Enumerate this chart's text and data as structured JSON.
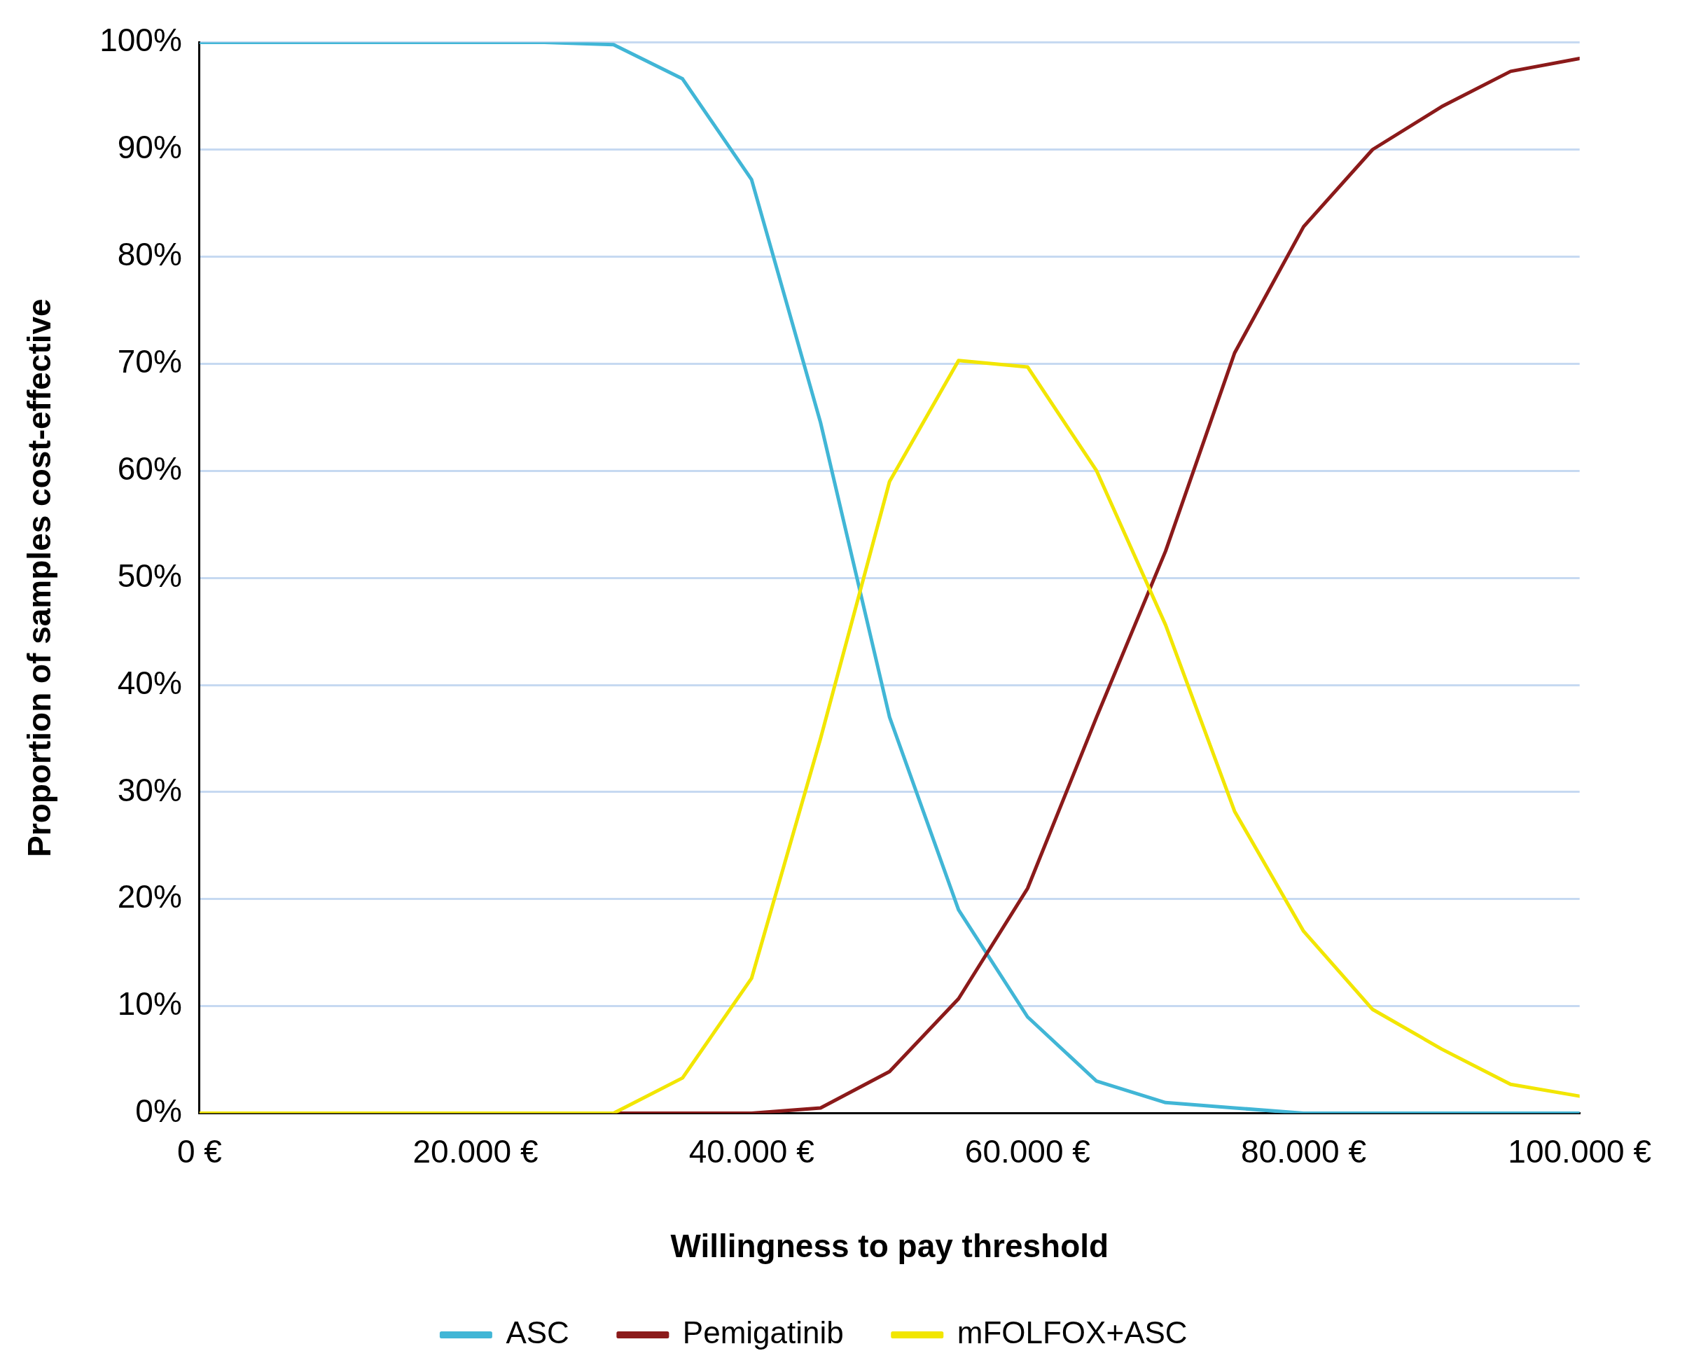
{
  "chart_data": {
    "type": "line",
    "xlabel": "Willingness to pay threshold",
    "ylabel": "Proportion of samples cost-effective",
    "x": [
      0,
      5000,
      10000,
      15000,
      20000,
      25000,
      30000,
      35000,
      40000,
      45000,
      50000,
      55000,
      60000,
      65000,
      70000,
      75000,
      80000,
      85000,
      90000,
      95000,
      100000
    ],
    "series": [
      {
        "name": "ASC",
        "color": "#41b6d6",
        "values": [
          100,
          100,
          100,
          100,
          100,
          100,
          99.8,
          96.6,
          87.2,
          64.5,
          37,
          19,
          9,
          3,
          1,
          0.5,
          0,
          0,
          0,
          0,
          0
        ]
      },
      {
        "name": "Pemigatinib",
        "color": "#8b1a1a",
        "values": [
          null,
          null,
          null,
          null,
          null,
          null,
          0,
          0,
          0,
          0.5,
          3.9,
          10.7,
          21,
          37,
          52.5,
          71,
          82.8,
          90,
          94,
          97.3,
          98.5
        ]
      },
      {
        "name": "mFOLFOX+ASC",
        "color": "#f2e600",
        "values": [
          0,
          0,
          0,
          0,
          0,
          0,
          0,
          3.3,
          12.6,
          35,
          59,
          70.3,
          69.7,
          60,
          45.6,
          28.2,
          17,
          9.7,
          6,
          2.7,
          1.6
        ]
      }
    ],
    "xlim": [
      0,
      100000
    ],
    "xticks": [
      {
        "value": 0,
        "label": "0 €"
      },
      {
        "value": 20000,
        "label": "20.000 €"
      },
      {
        "value": 40000,
        "label": "40.000 €"
      },
      {
        "value": 60000,
        "label": "60.000 €"
      },
      {
        "value": 80000,
        "label": "80.000 €"
      },
      {
        "value": 100000,
        "label": "100.000 €"
      }
    ],
    "ylim": [
      0,
      100
    ],
    "yticks": [
      {
        "value": 0,
        "label": "0%"
      },
      {
        "value": 10,
        "label": "10%"
      },
      {
        "value": 20,
        "label": "20%"
      },
      {
        "value": 30,
        "label": "30%"
      },
      {
        "value": 40,
        "label": "40%"
      },
      {
        "value": 50,
        "label": "50%"
      },
      {
        "value": 60,
        "label": "60%"
      },
      {
        "value": 70,
        "label": "70%"
      },
      {
        "value": 80,
        "label": "80%"
      },
      {
        "value": 90,
        "label": "90%"
      },
      {
        "value": 100,
        "label": "100%"
      }
    ],
    "grid": "y",
    "legend": "bottom",
    "marker": "none",
    "line_style": "solid"
  }
}
